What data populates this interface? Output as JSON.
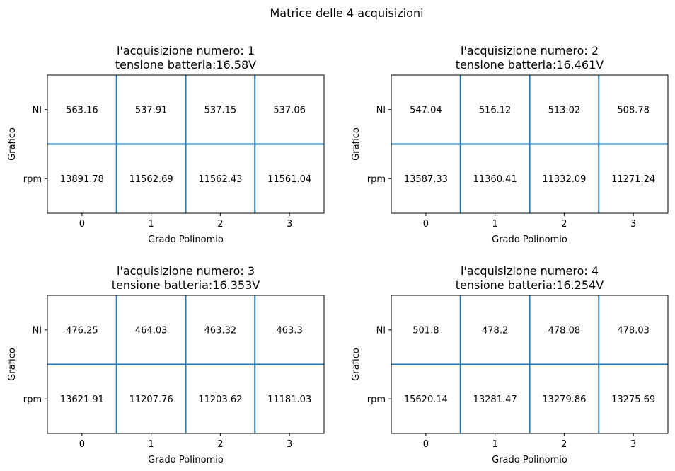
{
  "figure": {
    "suptitle": "Matrice delle 4 acquisizioni"
  },
  "chart_data": [
    {
      "type": "table",
      "title_line1": "l'acquisizione numero: 1",
      "title_line2": "tensione batteria:16.58V",
      "xlabel": "Grado Polinomio",
      "ylabel": "Grafico",
      "x_ticks": [
        "0",
        "1",
        "2",
        "3"
      ],
      "y_ticks": [
        "Nl",
        "rpm"
      ],
      "rows": [
        [
          "563.16",
          "537.91",
          "537.15",
          "537.06"
        ],
        [
          "13891.78",
          "11562.69",
          "11562.43",
          "11561.04"
        ]
      ]
    },
    {
      "type": "table",
      "title_line1": "l'acquisizione numero: 2",
      "title_line2": "tensione batteria:16.461V",
      "xlabel": "Grado Polinomio",
      "ylabel": "Grafico",
      "x_ticks": [
        "0",
        "1",
        "2",
        "3"
      ],
      "y_ticks": [
        "Nl",
        "rpm"
      ],
      "rows": [
        [
          "547.04",
          "516.12",
          "513.02",
          "508.78"
        ],
        [
          "13587.33",
          "11360.41",
          "11332.09",
          "11271.24"
        ]
      ]
    },
    {
      "type": "table",
      "title_line1": "l'acquisizione numero: 3",
      "title_line2": "tensione batteria:16.353V",
      "xlabel": "Grado Polinomio",
      "ylabel": "Grafico",
      "x_ticks": [
        "0",
        "1",
        "2",
        "3"
      ],
      "y_ticks": [
        "Nl",
        "rpm"
      ],
      "rows": [
        [
          "476.25",
          "464.03",
          "463.32",
          "463.3"
        ],
        [
          "13621.91",
          "11207.76",
          "11203.62",
          "11181.03"
        ]
      ]
    },
    {
      "type": "table",
      "title_line1": "l'acquisizione numero: 4",
      "title_line2": "tensione batteria:16.254V",
      "xlabel": "Grado Polinomio",
      "ylabel": "Grafico",
      "x_ticks": [
        "0",
        "1",
        "2",
        "3"
      ],
      "y_ticks": [
        "Nl",
        "rpm"
      ],
      "rows": [
        [
          "501.8",
          "478.2",
          "478.08",
          "478.03"
        ],
        [
          "15620.14",
          "13281.47",
          "13279.86",
          "13275.69"
        ]
      ]
    }
  ],
  "colors": {
    "grid_line": "#1f77b4",
    "frame": "#000000",
    "text": "#000000"
  }
}
